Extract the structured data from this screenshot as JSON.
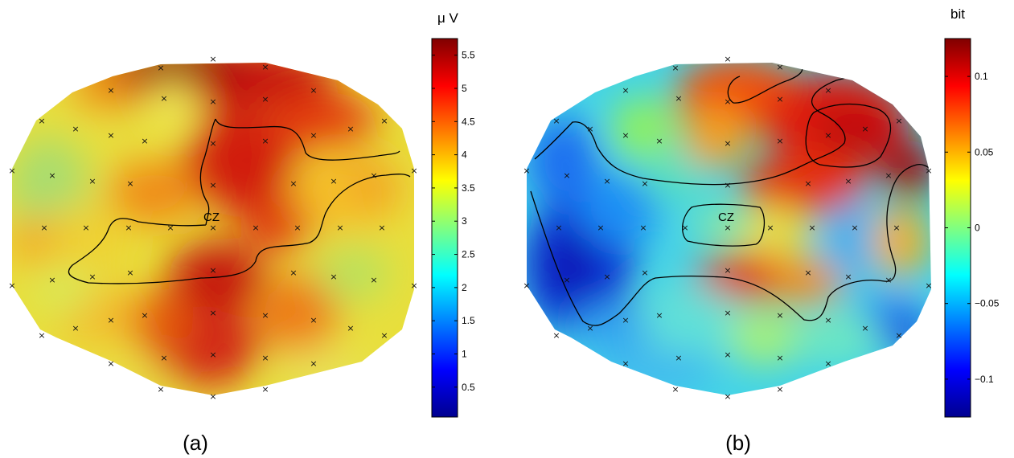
{
  "chart_data": [
    {
      "type": "heatmap",
      "panel_label": "(a)",
      "colorbar": {
        "unit_label": "μ V",
        "range": [
          0.05,
          5.75
        ],
        "ticks": [
          {
            "label": "0.5",
            "value": 0.5
          },
          {
            "label": "1",
            "value": 1
          },
          {
            "label": "1.5",
            "value": 1.5
          },
          {
            "label": "2",
            "value": 2
          },
          {
            "label": "2.5",
            "value": 2.5
          },
          {
            "label": "3",
            "value": 3
          },
          {
            "label": "3.5",
            "value": 3.5
          },
          {
            "label": "4",
            "value": 4
          },
          {
            "label": "4.5",
            "value": 4.5
          },
          {
            "label": "5",
            "value": 5
          },
          {
            "label": "5.5",
            "value": 5.5
          }
        ]
      },
      "electrode_label": "CZ",
      "grid": false
    },
    {
      "type": "heatmap",
      "panel_label": "(b)",
      "colorbar": {
        "unit_label": "bit",
        "range": [
          -0.125,
          0.125
        ],
        "ticks": [
          {
            "label": "−0.1",
            "value": -0.1
          },
          {
            "label": "−0.05",
            "value": -0.05
          },
          {
            "label": "0",
            "value": 0
          },
          {
            "label": "0.05",
            "value": 0.05
          },
          {
            "label": "0.1",
            "value": 0.1
          }
        ]
      },
      "electrode_label": "CZ",
      "grid": false
    }
  ]
}
